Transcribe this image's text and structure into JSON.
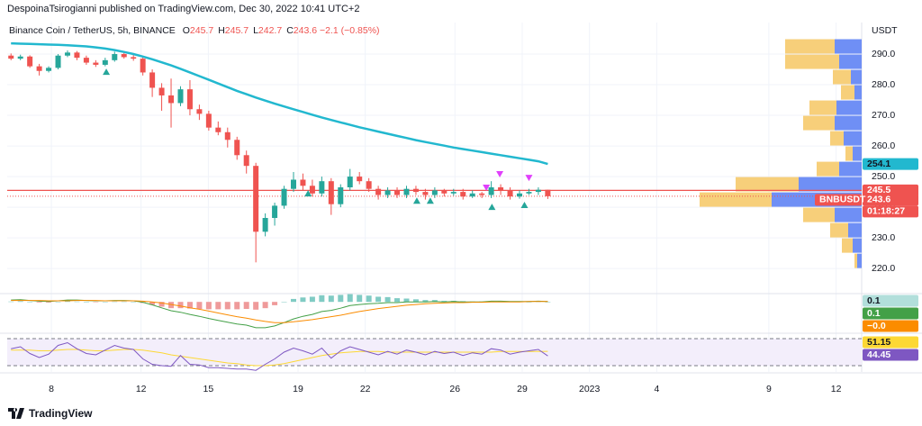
{
  "header": {
    "publisher": "DespoinaTsirogianni published on TradingView.com, Dec 30, 2022 10:41 UTC+2",
    "symbol": "Binance Coin / TetherUS, 5h, BINANCE",
    "ohlc": [
      [
        "O",
        "245.7"
      ],
      [
        "H",
        "245.7"
      ],
      [
        "L",
        "242.7"
      ],
      [
        "C",
        "243.6"
      ]
    ],
    "change": "−2.1 (−0.85%)"
  },
  "footer": {
    "brand": "TradingView"
  },
  "chart_data": {
    "type": "candlestick",
    "currency": "USDT",
    "ticker": "BNBUSDT",
    "countdown": "01:18:27",
    "up_color": "#26a69a",
    "down_color": "#ef5350",
    "grid": true,
    "xlim": [
      6.03,
      44.06
    ],
    "ylim": [
      212.1,
      300.3
    ],
    "xticks": [
      8,
      12,
      15,
      19,
      22,
      26,
      29,
      {
        "value": 32,
        "label": "2023"
      },
      {
        "value": 35,
        "label": "4"
      },
      {
        "value": 40,
        "label": "9"
      },
      {
        "value": 43,
        "label": "12"
      }
    ],
    "yticks": [
      {
        "value": 220,
        "label": "220.0"
      },
      {
        "value": 230,
        "label": "230.0"
      },
      {
        "value": 240,
        "label": "240.0"
      },
      {
        "value": 250,
        "label": "250.0"
      },
      {
        "value": 260,
        "label": "260.0"
      },
      {
        "value": 270,
        "label": "270.0"
      },
      {
        "value": 280,
        "label": "280.0"
      },
      {
        "value": 290,
        "label": "290.0"
      }
    ],
    "x": [
      6.2,
      6.62,
      7.04,
      7.46,
      7.88,
      8.3,
      8.72,
      9.14,
      9.56,
      9.98,
      10.4,
      10.82,
      11.24,
      11.66,
      12.08,
      12.5,
      12.92,
      13.34,
      13.76,
      14.18,
      14.6,
      15.02,
      15.44,
      15.86,
      16.28,
      16.7,
      17.12,
      17.54,
      17.96,
      18.38,
      18.8,
      19.22,
      19.64,
      20.06,
      20.48,
      20.9,
      21.32,
      21.74,
      22.16,
      22.58,
      23.0,
      23.42,
      23.84,
      24.26,
      24.68,
      25.1,
      25.52,
      25.94,
      26.36,
      26.78,
      27.2,
      27.62,
      28.04,
      28.46,
      28.88,
      29.3,
      29.72,
      30.14
    ],
    "open": [
      289.5,
      288.5,
      289.2,
      286.0,
      284.5,
      285.5,
      289.5,
      290.5,
      288.8,
      287.2,
      286.5,
      288.0,
      290.0,
      289.0,
      288.5,
      284.0,
      279.0,
      276.5,
      274.0,
      278.5,
      272.0,
      270.5,
      266.0,
      264.5,
      262.0,
      257.0,
      253.5,
      232.0,
      236.5,
      240.5,
      246.0,
      249.0,
      247.0,
      244.5,
      248.5,
      241.0,
      246.5,
      250.0,
      248.5,
      246.0,
      244.0,
      245.5,
      244.0,
      246.0,
      245.0,
      244.0,
      245.5,
      244.5,
      245.0,
      243.5,
      244.5,
      244.0,
      246.5,
      245.5,
      243.5,
      244.5,
      245.0,
      245.7
    ],
    "high": [
      290.2,
      289.8,
      289.6,
      286.8,
      286.0,
      290.0,
      291.2,
      291.0,
      289.5,
      288.0,
      288.8,
      290.8,
      290.4,
      289.8,
      289.0,
      285.0,
      280.5,
      282.0,
      279.5,
      281.5,
      273.5,
      271.5,
      268.0,
      266.0,
      263.0,
      258.5,
      254.5,
      238.0,
      241.5,
      247.0,
      251.5,
      251.0,
      249.0,
      250.0,
      249.5,
      247.5,
      252.5,
      251.5,
      249.5,
      247.0,
      246.5,
      246.5,
      247.0,
      247.0,
      246.0,
      246.5,
      246.0,
      246.0,
      246.0,
      245.5,
      245.0,
      248.5,
      247.5,
      246.5,
      245.5,
      246.0,
      246.5,
      245.7
    ],
    "low": [
      288.0,
      288.0,
      285.5,
      283.0,
      284.0,
      285.0,
      289.0,
      288.0,
      286.5,
      285.8,
      286.0,
      287.5,
      288.5,
      287.8,
      283.0,
      276.0,
      271.5,
      266.0,
      273.0,
      270.0,
      268.5,
      265.0,
      263.5,
      259.5,
      255.5,
      251.0,
      222.0,
      230.5,
      234.0,
      239.5,
      245.0,
      245.5,
      243.5,
      243.5,
      237.5,
      240.0,
      245.5,
      247.5,
      245.0,
      242.5,
      243.0,
      243.0,
      243.0,
      244.0,
      242.5,
      243.0,
      243.5,
      243.8,
      242.5,
      243.0,
      243.0,
      243.0,
      244.0,
      242.5,
      242.8,
      244.0,
      244.0,
      242.7
    ],
    "close": [
      288.5,
      289.2,
      286.0,
      284.5,
      285.5,
      289.5,
      290.5,
      288.8,
      287.2,
      286.5,
      288.0,
      290.0,
      289.0,
      288.5,
      284.0,
      279.0,
      276.5,
      274.0,
      278.5,
      272.0,
      270.5,
      266.0,
      264.5,
      262.0,
      257.0,
      253.5,
      232.0,
      236.5,
      240.5,
      246.0,
      249.0,
      247.0,
      244.5,
      248.5,
      241.0,
      246.5,
      250.0,
      248.5,
      246.0,
      244.0,
      245.5,
      244.0,
      246.0,
      245.0,
      244.0,
      245.5,
      244.5,
      245.0,
      243.5,
      244.5,
      244.0,
      246.5,
      245.5,
      243.5,
      244.5,
      245.0,
      245.7,
      243.6
    ],
    "ma": {
      "color": "#22b8cf",
      "values": [
        293.5,
        293.4,
        293.3,
        293.2,
        293.1,
        293.0,
        292.9,
        292.7,
        292.5,
        292.2,
        291.8,
        291.3,
        290.7,
        290.0,
        289.2,
        288.3,
        287.3,
        286.3,
        285.2,
        284.0,
        282.8,
        281.6,
        280.4,
        279.2,
        278.0,
        276.9,
        275.8,
        274.8,
        273.8,
        272.9,
        272.0,
        271.1,
        270.2,
        269.3,
        268.5,
        267.7,
        266.9,
        266.1,
        265.4,
        264.7,
        264.0,
        263.3,
        262.6,
        261.9,
        261.3,
        260.7,
        260.1,
        259.5,
        259.0,
        258.5,
        258.0,
        257.5,
        257.0,
        256.5,
        256.0,
        255.5,
        255.0,
        254.1
      ]
    },
    "price_line": 245.5,
    "buy_signals": {
      "color": "#26a69a",
      "x": [
        10.45,
        19.45,
        24.3,
        24.9,
        27.65,
        29.1
      ],
      "y": [
        284.1,
        244.4,
        242.0,
        242.0,
        240.0,
        240.6
      ]
    },
    "sell_signals": {
      "color": "#e040fb",
      "x": [
        27.4,
        28.0,
        29.3
      ],
      "y": [
        246.5,
        250.9,
        249.7
      ]
    },
    "volume_profile": {
      "up_color": "#6f8ff5",
      "down_color": "#f7cf7a",
      "bins": [
        220,
        225,
        230,
        235,
        240,
        245,
        250,
        255,
        260,
        265,
        270,
        275,
        280,
        285,
        290,
        295
      ],
      "up": [
        5,
        10,
        15,
        30,
        100,
        70,
        25,
        10,
        20,
        30,
        28,
        8,
        12,
        25,
        30
      ],
      "down": [
        3,
        12,
        20,
        35,
        80,
        70,
        25,
        8,
        15,
        35,
        30,
        15,
        20,
        60,
        55
      ]
    },
    "macd": {
      "ylim": [
        -8,
        2
      ],
      "macd_color": "#43a047",
      "signal_color": "#fb8c00",
      "macd": [
        0.5,
        0.6,
        0.4,
        0.2,
        0.1,
        0.3,
        0.5,
        0.5,
        0.4,
        0.3,
        0.3,
        0.4,
        0.4,
        0.3,
        -0.1,
        -0.8,
        -1.6,
        -2.4,
        -2.8,
        -3.4,
        -3.9,
        -4.5,
        -5.0,
        -5.5,
        -6.0,
        -6.3,
        -7.0,
        -7.0,
        -6.5,
        -5.6,
        -4.6,
        -3.9,
        -3.4,
        -2.6,
        -2.3,
        -1.7,
        -1.0,
        -0.7,
        -0.5,
        -0.4,
        -0.2,
        -0.2,
        0.0,
        0.0,
        0.0,
        0.1,
        0.0,
        0.1,
        0.0,
        0.0,
        0.0,
        0.2,
        0.2,
        0.1,
        0.1,
        0.1,
        0.2,
        0.1
      ],
      "signal": [
        0.4,
        0.4,
        0.4,
        0.4,
        0.3,
        0.3,
        0.3,
        0.4,
        0.4,
        0.4,
        0.3,
        0.3,
        0.3,
        0.3,
        0.2,
        0.0,
        -0.3,
        -0.7,
        -1.1,
        -1.6,
        -2.0,
        -2.5,
        -3.0,
        -3.5,
        -4.0,
        -4.4,
        -4.9,
        -5.3,
        -5.6,
        -5.6,
        -5.4,
        -5.1,
        -4.8,
        -4.4,
        -4.0,
        -3.6,
        -3.1,
        -2.6,
        -2.2,
        -1.8,
        -1.5,
        -1.2,
        -0.9,
        -0.7,
        -0.5,
        -0.4,
        -0.3,
        -0.2,
        -0.2,
        -0.1,
        -0.1,
        0.0,
        0.0,
        0.0,
        0.0,
        0.1,
        0.1,
        0.1
      ],
      "histogram": [
        0.1,
        0.2,
        0.0,
        -0.2,
        -0.2,
        0.0,
        0.2,
        0.1,
        0.0,
        -0.1,
        0.0,
        0.1,
        0.1,
        0.0,
        -0.3,
        -0.8,
        -1.3,
        -1.7,
        -1.7,
        -1.8,
        -1.9,
        -2.0,
        -2.0,
        -2.0,
        -2.0,
        -1.9,
        -2.1,
        -1.7,
        -0.9,
        0.0,
        0.8,
        1.2,
        1.4,
        1.8,
        1.7,
        1.9,
        2.1,
        1.9,
        1.7,
        1.4,
        1.3,
        1.0,
        0.9,
        0.7,
        0.5,
        0.5,
        0.3,
        0.3,
        0.2,
        0.1,
        0.1,
        0.2,
        0.2,
        0.1,
        0.1,
        0.0,
        0.1,
        0.0
      ],
      "last_value_labels": [
        "0.1",
        "0.1",
        "−0.0"
      ]
    },
    "rsi": {
      "ylim": [
        22,
        75.3
      ],
      "levels": [
        30,
        70
      ],
      "rsi_color": "#7e57c2",
      "ma_color": "#fdd835",
      "rsi": [
        55,
        58,
        48,
        42,
        47,
        60,
        64,
        55,
        48,
        46,
        53,
        60,
        56,
        54,
        40,
        32,
        30,
        29,
        45,
        32,
        31,
        27,
        27,
        26,
        25,
        25,
        23,
        32,
        40,
        50,
        56,
        52,
        47,
        56,
        41,
        52,
        58,
        54,
        50,
        46,
        51,
        47,
        53,
        50,
        46,
        51,
        48,
        50,
        45,
        49,
        47,
        55,
        53,
        47,
        50,
        52,
        54,
        44.45
      ],
      "ma": [
        53,
        53,
        53,
        52,
        52,
        53,
        54,
        54,
        53,
        52,
        52,
        53,
        54,
        54,
        53,
        51,
        49,
        46,
        44,
        42,
        40,
        38,
        36,
        34,
        33,
        31,
        30,
        30,
        31,
        33,
        36,
        39,
        42,
        45,
        47,
        49,
        50,
        51,
        51,
        51,
        50,
        50,
        50,
        50,
        50,
        50,
        50,
        50,
        50,
        50,
        50,
        50,
        51,
        51,
        51,
        51,
        51,
        51.15
      ]
    }
  }
}
